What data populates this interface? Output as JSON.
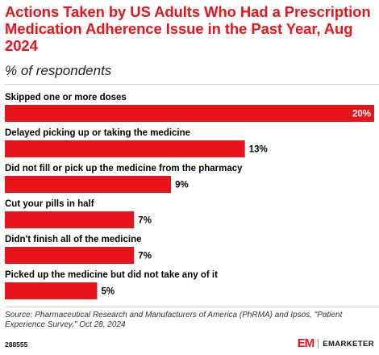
{
  "title": "Actions Taken by US Adults Who Had a Prescription Medication Adherence Issue in the Past Year, Aug 2024",
  "subtitle": "% of respondents",
  "source": "Source: Pharmaceutical Research and Manufacturers of America (PhRMA) and Ipsos, \"Patient Experience Survey,\" Oct 28, 2024",
  "chart_id": "288555",
  "brand": {
    "mark": "EM",
    "name": "EMARKETER"
  },
  "colors": {
    "accent": "#e8141b",
    "bar": "#e8141b",
    "value_inside": "#ffffff",
    "value_outside": "#000000"
  },
  "chart_data": {
    "type": "bar",
    "orientation": "horizontal",
    "categories": [
      "Skipped one or more doses",
      "Delayed picking up or taking the medicine",
      "Did not fill or pick up the medicine from the pharmacy",
      "Cut your pills in half",
      "Didn't finish all of the medicine",
      "Picked up the medicine but did not take any of it"
    ],
    "values": [
      20,
      13,
      9,
      7,
      7,
      5
    ],
    "value_labels": [
      "20%",
      "13%",
      "9%",
      "7%",
      "7%",
      "5%"
    ],
    "xlim": [
      0,
      20
    ],
    "grid": false,
    "legend": "none"
  }
}
